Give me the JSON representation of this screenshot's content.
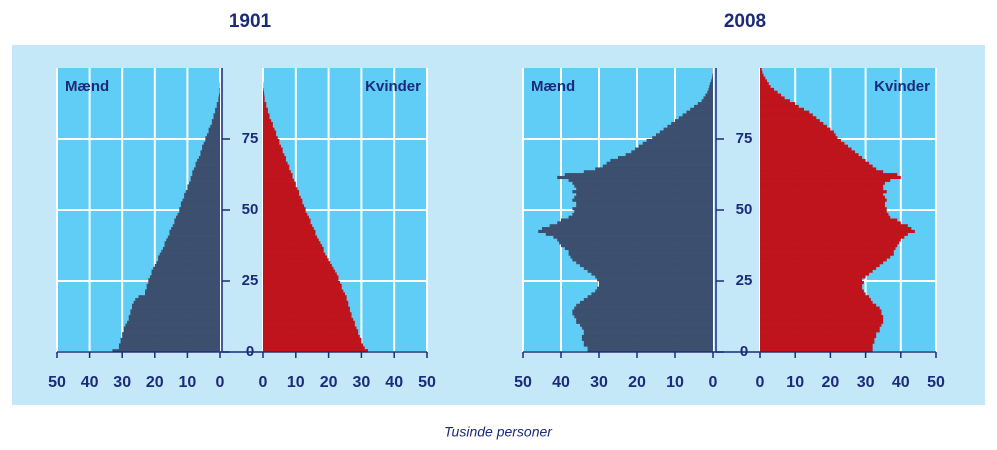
{
  "chart_data": [
    {
      "type": "pyramid",
      "title": "1901",
      "categories": [
        0,
        1,
        2,
        3,
        4,
        5,
        6,
        7,
        8,
        9,
        10,
        11,
        12,
        13,
        14,
        15,
        16,
        17,
        18,
        19,
        20,
        21,
        22,
        23,
        24,
        25,
        26,
        27,
        28,
        29,
        30,
        31,
        32,
        33,
        34,
        35,
        36,
        37,
        38,
        39,
        40,
        41,
        42,
        43,
        44,
        45,
        46,
        47,
        48,
        49,
        50,
        51,
        52,
        53,
        54,
        55,
        56,
        57,
        58,
        59,
        60,
        61,
        62,
        63,
        64,
        65,
        66,
        67,
        68,
        69,
        70,
        71,
        72,
        73,
        74,
        75,
        76,
        77,
        78,
        79,
        80,
        81,
        82,
        83,
        84,
        85,
        86,
        87,
        88,
        89,
        90,
        91,
        92,
        93,
        94,
        95,
        96,
        97,
        98,
        99
      ],
      "series": [
        {
          "name": "Mænd",
          "color": "#3d4f6e",
          "values": [
            33,
            31,
            31,
            30.5,
            30.5,
            30,
            30,
            29.5,
            29.5,
            29,
            28.5,
            28,
            28,
            27.5,
            27.5,
            27,
            27,
            26.5,
            26,
            25,
            23,
            23,
            22.5,
            22.5,
            22,
            22,
            21.5,
            21,
            21,
            20.5,
            20,
            19.5,
            19,
            19,
            18.5,
            18,
            17.5,
            17,
            17,
            16.5,
            16,
            15.5,
            15.5,
            15,
            14.5,
            14,
            14,
            13.5,
            13,
            12.5,
            12.5,
            12,
            12,
            11.5,
            11,
            11,
            10.5,
            10,
            10,
            9.5,
            9,
            9,
            8.5,
            8.5,
            8,
            7.5,
            7.5,
            7,
            6.5,
            6,
            6,
            5.5,
            5.5,
            5,
            4.5,
            4.5,
            4,
            3.5,
            3.5,
            3,
            2.5,
            2.5,
            2,
            2,
            1.5,
            1.5,
            1,
            1,
            0.5,
            0.5,
            0.3,
            0.2,
            0.2,
            0.1,
            0.1,
            0,
            0,
            0,
            0,
            0
          ]
        },
        {
          "name": "Kvinder",
          "color": "#c0141c",
          "values": [
            32,
            31,
            30.5,
            30,
            30,
            29.5,
            29,
            29,
            28.5,
            28,
            28,
            27.5,
            27,
            27,
            26.5,
            26.5,
            26,
            26,
            25.5,
            25.5,
            25,
            24.5,
            24,
            24,
            23.5,
            23,
            23,
            22.5,
            22,
            21.5,
            21,
            20.5,
            20,
            19.5,
            19,
            18.5,
            18.5,
            18,
            17.5,
            17,
            16.5,
            16,
            16,
            15.5,
            15,
            14.5,
            14.5,
            14,
            13.5,
            13,
            13,
            12.5,
            12,
            12,
            11.5,
            11,
            11,
            10.5,
            10,
            10,
            9.5,
            9,
            9,
            8.5,
            8,
            8,
            7.5,
            7,
            7,
            6.5,
            6,
            6,
            5.5,
            5,
            5,
            4.5,
            4,
            4,
            3.5,
            3,
            3,
            2.5,
            2,
            2,
            1.5,
            1.5,
            1,
            1,
            0.5,
            0.5,
            0.4,
            0.3,
            0.2,
            0.1,
            0.1,
            0,
            0,
            0,
            0,
            0
          ]
        }
      ],
      "xlim": [
        0,
        50
      ],
      "xticks": [
        0,
        10,
        20,
        30,
        40,
        50
      ],
      "ylim": [
        0,
        100
      ],
      "yticks": [
        0,
        25,
        50,
        75
      ],
      "grid": true
    },
    {
      "type": "pyramid",
      "title": "2008",
      "categories": [
        0,
        1,
        2,
        3,
        4,
        5,
        6,
        7,
        8,
        9,
        10,
        11,
        12,
        13,
        14,
        15,
        16,
        17,
        18,
        19,
        20,
        21,
        22,
        23,
        24,
        25,
        26,
        27,
        28,
        29,
        30,
        31,
        32,
        33,
        34,
        35,
        36,
        37,
        38,
        39,
        40,
        41,
        42,
        43,
        44,
        45,
        46,
        47,
        48,
        49,
        50,
        51,
        52,
        53,
        54,
        55,
        56,
        57,
        58,
        59,
        60,
        61,
        62,
        63,
        64,
        65,
        66,
        67,
        68,
        69,
        70,
        71,
        72,
        73,
        74,
        75,
        76,
        77,
        78,
        79,
        80,
        81,
        82,
        83,
        84,
        85,
        86,
        87,
        88,
        89,
        90,
        91,
        92,
        93,
        94,
        95,
        96,
        97,
        98,
        99
      ],
      "series": [
        {
          "name": "Mænd",
          "color": "#3d4f6e",
          "values": [
            33,
            33,
            34,
            34,
            34.5,
            34.5,
            34,
            34,
            34.5,
            35,
            36,
            36,
            36.5,
            37,
            37,
            36.5,
            36,
            35,
            34,
            33,
            32,
            31,
            30.5,
            30,
            30,
            30.5,
            31,
            32,
            33,
            34,
            35,
            36,
            37,
            37.5,
            38,
            38,
            39,
            40,
            40.5,
            41,
            42,
            44,
            46,
            45,
            43,
            41,
            40,
            38,
            37,
            36.5,
            37,
            36,
            36,
            37,
            36.5,
            36,
            37,
            36,
            36.5,
            37,
            38,
            41,
            39,
            34,
            31,
            29,
            28,
            27,
            25,
            23,
            21.5,
            20.5,
            19.5,
            18.5,
            17.5,
            16,
            15,
            14,
            13,
            12,
            11,
            10,
            9,
            8,
            7,
            6,
            5,
            4,
            3,
            2.5,
            2,
            1.5,
            1.2,
            1,
            0.8,
            0.5,
            0.3,
            0.2,
            0.1,
            0.1
          ]
        },
        {
          "name": "Kvinder",
          "color": "#c0141c",
          "values": [
            32,
            32,
            32,
            32.5,
            32.5,
            33,
            33,
            34,
            34,
            34.5,
            35,
            35,
            35,
            34.5,
            34.5,
            34,
            33,
            32,
            31.5,
            31,
            30,
            29.5,
            29,
            29,
            29.5,
            29,
            30,
            31,
            32,
            33,
            34,
            35,
            36,
            37,
            38,
            38,
            38.5,
            39,
            39.5,
            40,
            41,
            42,
            44,
            43,
            42,
            40,
            39,
            37,
            36.5,
            36,
            36,
            35.5,
            35.5,
            36,
            35.5,
            35,
            36,
            35,
            35,
            35.5,
            37,
            40,
            39,
            35,
            33,
            32,
            31,
            30,
            29,
            28,
            27,
            26,
            25,
            24,
            23,
            22,
            21.5,
            21,
            20,
            19,
            18,
            17,
            16,
            15,
            14,
            12.5,
            11,
            10,
            8.5,
            7,
            6,
            5,
            4,
            3,
            2.5,
            2,
            1.5,
            1,
            0.7,
            0.5
          ]
        }
      ],
      "xlim": [
        0,
        50
      ],
      "xticks": [
        0,
        10,
        20,
        30,
        40,
        50
      ],
      "ylim": [
        0,
        100
      ],
      "yticks": [
        0,
        25,
        50,
        75
      ],
      "grid": true
    }
  ],
  "caption": "Tusinde personer"
}
